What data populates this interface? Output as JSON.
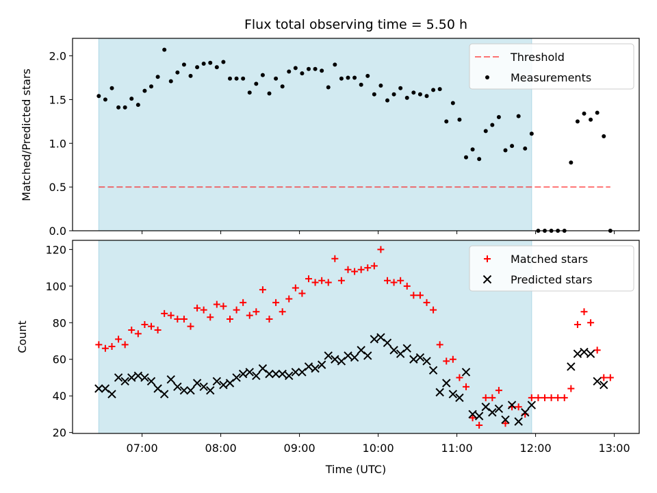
{
  "title": "Flux total observing time = 5.50 h",
  "xlabel": "Time (UTC)",
  "colors": {
    "night_shading": "#add8e6",
    "threshold": "#ff0000",
    "measurements": "#000000",
    "matched": "#ff0000",
    "predicted": "#000000"
  },
  "chart_data": [
    {
      "type": "scatter",
      "ylabel": "Matched/Predicted stars",
      "ylim": [
        0,
        2.2
      ],
      "yticks": [
        "0.0",
        "0.5",
        "1.0",
        "1.5",
        "2.0"
      ],
      "xticks": [
        "07:00",
        "08:00",
        "09:00",
        "10:00",
        "11:00",
        "12:00",
        "13:00"
      ],
      "shaded_interval": {
        "start": "06:27",
        "end": "11:57"
      },
      "threshold": {
        "name": "Threshold",
        "y": 0.5,
        "x_start": "06:27",
        "x_end": "12:57"
      },
      "legend": {
        "position": "top-right",
        "entries": [
          "Threshold",
          "Measurements"
        ]
      },
      "series": [
        {
          "name": "Measurements",
          "marker": "dot",
          "points": [
            [
              "06:27",
              1.54
            ],
            [
              "06:32",
              1.5
            ],
            [
              "06:37",
              1.63
            ],
            [
              "06:42",
              1.41
            ],
            [
              "06:47",
              1.41
            ],
            [
              "06:52",
              1.51
            ],
            [
              "06:57",
              1.44
            ],
            [
              "07:02",
              1.6
            ],
            [
              "07:07",
              1.65
            ],
            [
              "07:12",
              1.76
            ],
            [
              "07:17",
              2.07
            ],
            [
              "07:22",
              1.71
            ],
            [
              "07:27",
              1.81
            ],
            [
              "07:32",
              1.9
            ],
            [
              "07:37",
              1.77
            ],
            [
              "07:42",
              1.87
            ],
            [
              "07:47",
              1.91
            ],
            [
              "07:52",
              1.92
            ],
            [
              "07:57",
              1.87
            ],
            [
              "08:02",
              1.93
            ],
            [
              "08:07",
              1.74
            ],
            [
              "08:12",
              1.74
            ],
            [
              "08:17",
              1.74
            ],
            [
              "08:22",
              1.58
            ],
            [
              "08:27",
              1.68
            ],
            [
              "08:32",
              1.78
            ],
            [
              "08:37",
              1.57
            ],
            [
              "08:42",
              1.74
            ],
            [
              "08:47",
              1.65
            ],
            [
              "08:52",
              1.82
            ],
            [
              "08:57",
              1.86
            ],
            [
              "09:02",
              1.8
            ],
            [
              "09:07",
              1.85
            ],
            [
              "09:12",
              1.85
            ],
            [
              "09:17",
              1.83
            ],
            [
              "09:22",
              1.64
            ],
            [
              "09:27",
              1.9
            ],
            [
              "09:32",
              1.74
            ],
            [
              "09:37",
              1.75
            ],
            [
              "09:42",
              1.75
            ],
            [
              "09:47",
              1.67
            ],
            [
              "09:52",
              1.77
            ],
            [
              "09:57",
              1.56
            ],
            [
              "10:02",
              1.66
            ],
            [
              "10:07",
              1.49
            ],
            [
              "10:12",
              1.56
            ],
            [
              "10:17",
              1.63
            ],
            [
              "10:22",
              1.52
            ],
            [
              "10:27",
              1.58
            ],
            [
              "10:32",
              1.56
            ],
            [
              "10:37",
              1.54
            ],
            [
              "10:42",
              1.61
            ],
            [
              "10:47",
              1.62
            ],
            [
              "10:52",
              1.25
            ],
            [
              "10:57",
              1.46
            ],
            [
              "11:02",
              1.27
            ],
            [
              "11:07",
              0.84
            ],
            [
              "11:12",
              0.93
            ],
            [
              "11:17",
              0.82
            ],
            [
              "11:22",
              1.14
            ],
            [
              "11:27",
              1.21
            ],
            [
              "11:32",
              1.3
            ],
            [
              "11:37",
              0.92
            ],
            [
              "11:42",
              0.97
            ],
            [
              "11:47",
              1.31
            ],
            [
              "11:52",
              0.94
            ],
            [
              "11:57",
              1.11
            ],
            [
              "12:02",
              0.0
            ],
            [
              "12:07",
              0.0
            ],
            [
              "12:12",
              0.0
            ],
            [
              "12:17",
              0.0
            ],
            [
              "12:22",
              0.0
            ],
            [
              "12:27",
              0.78
            ],
            [
              "12:32",
              1.25
            ],
            [
              "12:37",
              1.34
            ],
            [
              "12:42",
              1.27
            ],
            [
              "12:47",
              1.35
            ],
            [
              "12:52",
              1.08
            ],
            [
              "12:57",
              0.0
            ]
          ]
        }
      ]
    },
    {
      "type": "scatter",
      "ylabel": "Count",
      "ylim": [
        19.5,
        125
      ],
      "yticks": [
        "20",
        "40",
        "60",
        "80",
        "100",
        "120"
      ],
      "xticks": [
        "07:00",
        "08:00",
        "09:00",
        "10:00",
        "11:00",
        "12:00",
        "13:00"
      ],
      "shaded_interval": {
        "start": "06:27",
        "end": "11:57"
      },
      "legend": {
        "position": "top-right",
        "entries": [
          "Matched stars",
          "Predicted stars"
        ]
      },
      "series": [
        {
          "name": "Matched stars",
          "marker": "plus",
          "points": [
            [
              "06:27",
              68
            ],
            [
              "06:32",
              66
            ],
            [
              "06:37",
              67
            ],
            [
              "06:42",
              71
            ],
            [
              "06:47",
              68
            ],
            [
              "06:52",
              76
            ],
            [
              "06:57",
              74
            ],
            [
              "07:02",
              79
            ],
            [
              "07:07",
              78
            ],
            [
              "07:12",
              76
            ],
            [
              "07:17",
              85
            ],
            [
              "07:22",
              84
            ],
            [
              "07:27",
              82
            ],
            [
              "07:32",
              82
            ],
            [
              "07:37",
              78
            ],
            [
              "07:42",
              88
            ],
            [
              "07:47",
              87
            ],
            [
              "07:52",
              83
            ],
            [
              "07:57",
              90
            ],
            [
              "08:02",
              89
            ],
            [
              "08:07",
              82
            ],
            [
              "08:12",
              87
            ],
            [
              "08:17",
              91
            ],
            [
              "08:22",
              84
            ],
            [
              "08:27",
              86
            ],
            [
              "08:32",
              98
            ],
            [
              "08:37",
              82
            ],
            [
              "08:42",
              91
            ],
            [
              "08:47",
              86
            ],
            [
              "08:52",
              93
            ],
            [
              "08:57",
              99
            ],
            [
              "09:02",
              96
            ],
            [
              "09:07",
              104
            ],
            [
              "09:12",
              102
            ],
            [
              "09:17",
              103
            ],
            [
              "09:22",
              102
            ],
            [
              "09:27",
              115
            ],
            [
              "09:32",
              103
            ],
            [
              "09:37",
              109
            ],
            [
              "09:42",
              108
            ],
            [
              "09:47",
              109
            ],
            [
              "09:52",
              110
            ],
            [
              "09:57",
              111
            ],
            [
              "10:02",
              120
            ],
            [
              "10:07",
              103
            ],
            [
              "10:12",
              102
            ],
            [
              "10:17",
              103
            ],
            [
              "10:22",
              100
            ],
            [
              "10:27",
              95
            ],
            [
              "10:32",
              95
            ],
            [
              "10:37",
              91
            ],
            [
              "10:42",
              87
            ],
            [
              "10:47",
              68
            ],
            [
              "10:52",
              59
            ],
            [
              "10:57",
              60
            ],
            [
              "11:02",
              50
            ],
            [
              "11:07",
              45
            ],
            [
              "11:12",
              28
            ],
            [
              "11:17",
              24
            ],
            [
              "11:22",
              39
            ],
            [
              "11:27",
              39
            ],
            [
              "11:32",
              43
            ],
            [
              "11:37",
              25
            ],
            [
              "11:42",
              34
            ],
            [
              "11:47",
              34
            ],
            [
              "11:52",
              30
            ],
            [
              "11:57",
              39
            ],
            [
              "12:02",
              39
            ],
            [
              "12:07",
              39
            ],
            [
              "12:12",
              39
            ],
            [
              "12:17",
              39
            ],
            [
              "12:22",
              39
            ],
            [
              "12:27",
              44
            ],
            [
              "12:32",
              79
            ],
            [
              "12:37",
              86
            ],
            [
              "12:42",
              80
            ],
            [
              "12:47",
              65
            ],
            [
              "12:52",
              50
            ],
            [
              "12:57",
              50
            ]
          ]
        },
        {
          "name": "Predicted stars",
          "marker": "x",
          "points": [
            [
              "06:27",
              44
            ],
            [
              "06:32",
              44
            ],
            [
              "06:37",
              41
            ],
            [
              "06:42",
              50
            ],
            [
              "06:47",
              48
            ],
            [
              "06:52",
              50
            ],
            [
              "06:57",
              51
            ],
            [
              "07:02",
              50
            ],
            [
              "07:07",
              48
            ],
            [
              "07:12",
              44
            ],
            [
              "07:17",
              41
            ],
            [
              "07:22",
              49
            ],
            [
              "07:27",
              45
            ],
            [
              "07:32",
              43
            ],
            [
              "07:37",
              43
            ],
            [
              "07:42",
              47
            ],
            [
              "07:47",
              45
            ],
            [
              "07:52",
              43
            ],
            [
              "07:57",
              48
            ],
            [
              "08:02",
              46
            ],
            [
              "08:07",
              47
            ],
            [
              "08:12",
              50
            ],
            [
              "08:17",
              52
            ],
            [
              "08:22",
              53
            ],
            [
              "08:27",
              51
            ],
            [
              "08:32",
              55
            ],
            [
              "08:37",
              52
            ],
            [
              "08:42",
              52
            ],
            [
              "08:47",
              52
            ],
            [
              "08:52",
              51
            ],
            [
              "08:57",
              53
            ],
            [
              "09:02",
              53
            ],
            [
              "09:07",
              56
            ],
            [
              "09:12",
              55
            ],
            [
              "09:17",
              57
            ],
            [
              "09:22",
              62
            ],
            [
              "09:27",
              60
            ],
            [
              "09:32",
              59
            ],
            [
              "09:37",
              62
            ],
            [
              "09:42",
              61
            ],
            [
              "09:47",
              65
            ],
            [
              "09:52",
              62
            ],
            [
              "09:57",
              71
            ],
            [
              "10:02",
              72
            ],
            [
              "10:07",
              69
            ],
            [
              "10:12",
              65
            ],
            [
              "10:17",
              63
            ],
            [
              "10:22",
              66
            ],
            [
              "10:27",
              60
            ],
            [
              "10:32",
              61
            ],
            [
              "10:37",
              59
            ],
            [
              "10:42",
              54
            ],
            [
              "10:47",
              42
            ],
            [
              "10:52",
              47
            ],
            [
              "10:57",
              41
            ],
            [
              "11:02",
              39
            ],
            [
              "11:07",
              53
            ],
            [
              "11:12",
              30
            ],
            [
              "11:17",
              29
            ],
            [
              "11:22",
              34
            ],
            [
              "11:27",
              31
            ],
            [
              "11:32",
              33
            ],
            [
              "11:37",
              27
            ],
            [
              "11:42",
              35
            ],
            [
              "11:47",
              26
            ],
            [
              "11:52",
              31
            ],
            [
              "11:57",
              35
            ],
            [
              "12:27",
              56
            ],
            [
              "12:32",
              63
            ],
            [
              "12:37",
              64
            ],
            [
              "12:42",
              63
            ],
            [
              "12:47",
              48
            ],
            [
              "12:52",
              46
            ]
          ]
        }
      ]
    }
  ]
}
